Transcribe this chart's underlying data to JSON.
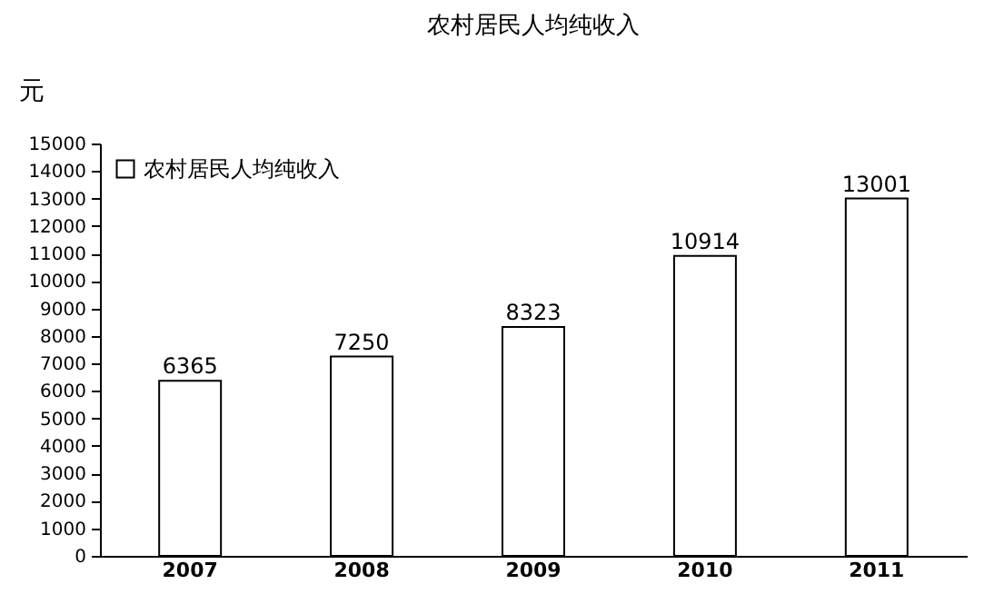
{
  "chart_data": {
    "type": "bar",
    "title": "农村居民人均纯收入",
    "ylabel": "元",
    "categories": [
      "2007",
      "2008",
      "2009",
      "2010",
      "2011"
    ],
    "series": [
      {
        "name": "农村居民人均纯收入",
        "color": "#ffffff",
        "values": [
          6365,
          7250,
          8323,
          10914,
          13001
        ]
      }
    ],
    "ylim": [
      0,
      15000
    ],
    "yticks": [
      0,
      1000,
      2000,
      3000,
      4000,
      5000,
      6000,
      7000,
      8000,
      9000,
      10000,
      11000,
      12000,
      13000,
      14000,
      15000
    ],
    "data_labels": true,
    "grid": false,
    "legend": "top left"
  }
}
